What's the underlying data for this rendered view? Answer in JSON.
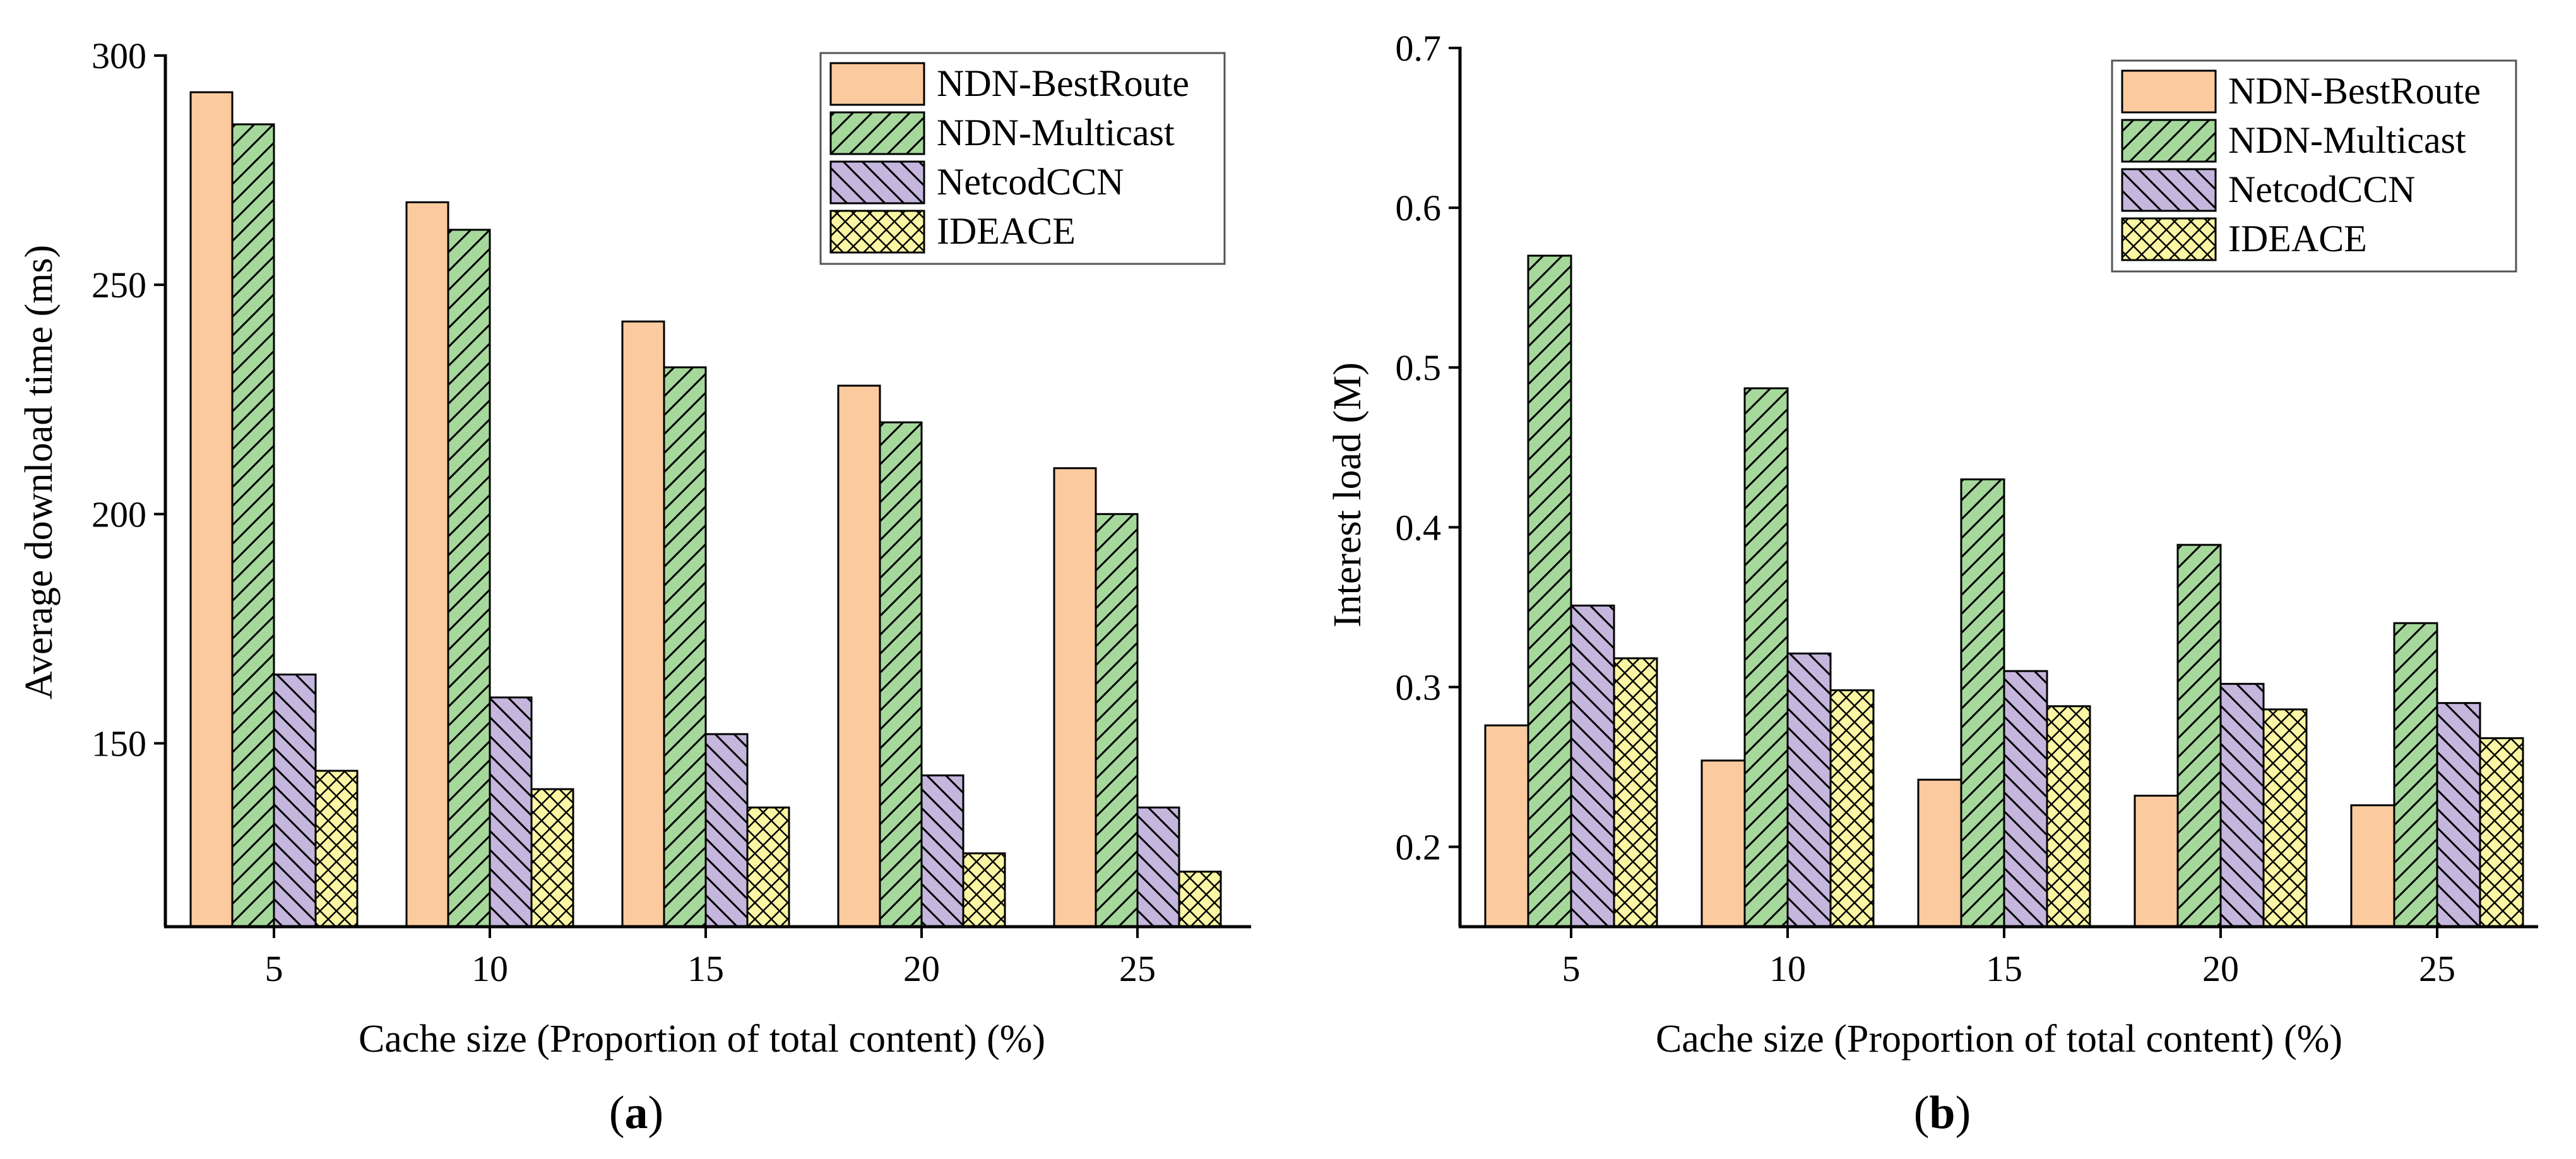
{
  "colors": {
    "NDN-BestRoute": "#FBCB9F",
    "NDN-Multicast": "#A6D89C",
    "NetcodCCN": "#C5B6DD",
    "IDEACE": "#FBF6A3"
  },
  "chart_data": [
    {
      "type": "bar",
      "panel": "(a)",
      "panel_letter": "a",
      "xlabel": "Cache size (Proportion of total content) (%)",
      "ylabel": "Average download time (ms)",
      "categories": [
        "5",
        "10",
        "15",
        "20",
        "25"
      ],
      "ylim": [
        110,
        300
      ],
      "yticks": [
        150,
        200,
        250,
        300
      ],
      "legend_position": "top-right",
      "series": [
        {
          "name": "NDN-BestRoute",
          "pattern": "solid",
          "values": [
            292,
            268,
            242,
            228,
            210
          ]
        },
        {
          "name": "NDN-Multicast",
          "pattern": "diag-forward",
          "values": [
            285,
            262,
            232,
            220,
            200
          ]
        },
        {
          "name": "NetcodCCN",
          "pattern": "diag-backward",
          "values": [
            165,
            160,
            152,
            143,
            136
          ]
        },
        {
          "name": "IDEACE",
          "pattern": "crosshatch",
          "values": [
            144,
            140,
            136,
            126,
            122
          ]
        }
      ]
    },
    {
      "type": "bar",
      "panel": "(b)",
      "panel_letter": "b",
      "xlabel": "Cache size (Proportion of total content) (%)",
      "ylabel": "Interest load (M)",
      "categories": [
        "5",
        "10",
        "15",
        "20",
        "25"
      ],
      "ylim": [
        0.15,
        0.7
      ],
      "yticks": [
        0.2,
        0.3,
        0.4,
        0.5,
        0.6,
        0.7
      ],
      "legend_position": "top-right",
      "series": [
        {
          "name": "NDN-BestRoute",
          "pattern": "solid",
          "values": [
            0.276,
            0.254,
            0.242,
            0.232,
            0.226
          ]
        },
        {
          "name": "NDN-Multicast",
          "pattern": "diag-forward",
          "values": [
            0.57,
            0.487,
            0.43,
            0.389,
            0.34
          ]
        },
        {
          "name": "NetcodCCN",
          "pattern": "diag-backward",
          "values": [
            0.351,
            0.321,
            0.31,
            0.302,
            0.29
          ]
        },
        {
          "name": "IDEACE",
          "pattern": "crosshatch",
          "values": [
            0.318,
            0.298,
            0.288,
            0.286,
            0.268
          ]
        }
      ]
    }
  ]
}
